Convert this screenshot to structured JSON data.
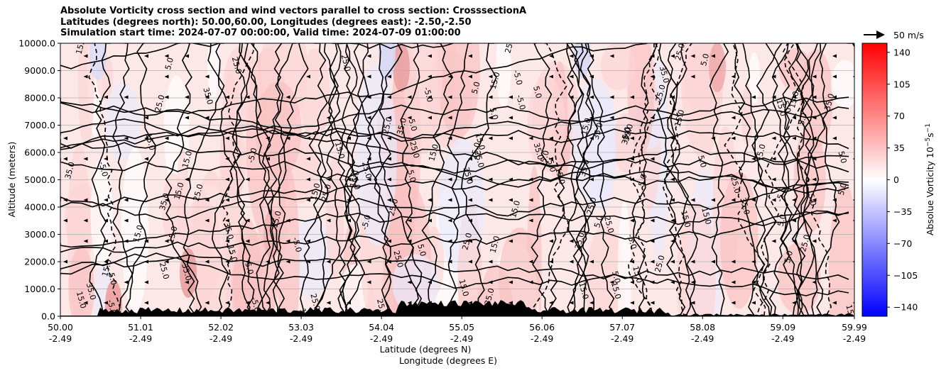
{
  "title_lines": [
    "Absolute Vorticity cross section and wind vectors parallel to cross section: CrosssectionA",
    "Latitudes (degrees north): 50.00,60.00, Longitudes (degrees east): -2.50,-2.50",
    "Simulation start time: 2024-07-07 00:00:00, Valid time: 2024-07-09 01:00:00"
  ],
  "chart_data": {
    "type": "heatmap",
    "title": "Absolute Vorticity cross section and wind vectors parallel to cross section: CrosssectionA",
    "ylabel": "Altitude (meters)",
    "xlabel_lines": [
      "Latitude (degrees N)",
      "Longitude (degrees E)"
    ],
    "ylim": [
      0,
      10000
    ],
    "xlim": [
      50.0,
      59.99
    ],
    "y_ticks": [
      0,
      1000,
      2000,
      3000,
      4000,
      5000,
      6000,
      7000,
      8000,
      9000,
      10000
    ],
    "y_tick_labels": [
      "0.0",
      "1000.0",
      "2000.0",
      "3000.0",
      "4000.0",
      "5000.0",
      "6000.0",
      "7000.0",
      "8000.0",
      "9000.0",
      "10000.0"
    ],
    "x_ticks": [
      50.0,
      51.01,
      52.02,
      53.03,
      54.04,
      55.05,
      56.06,
      57.07,
      58.08,
      59.09,
      59.99
    ],
    "x_tick_labels": [
      [
        "50.00",
        "-2.49"
      ],
      [
        "51.01",
        "-2.49"
      ],
      [
        "52.02",
        "-2.49"
      ],
      [
        "53.03",
        "-2.49"
      ],
      [
        "54.04",
        "-2.49"
      ],
      [
        "55.05",
        "-2.49"
      ],
      [
        "56.06",
        "-2.49"
      ],
      [
        "57.07",
        "-2.49"
      ],
      [
        "58.08",
        "-2.49"
      ],
      [
        "59.09",
        "-2.49"
      ],
      [
        "59.99",
        "-2.49"
      ]
    ],
    "grid": "horizontal",
    "colorbar": {
      "label": "Absolue Vorticity 10^-5 s^-1",
      "label_main": "Absolue Vorticity 10",
      "label_exp": "−5",
      "label_unit": "s",
      "label_unit_exp": "−1",
      "range": [
        -150,
        150
      ],
      "ticks": [
        140,
        105,
        70,
        35,
        0,
        -35,
        -70,
        -105,
        -140
      ],
      "colormap": "bwr"
    },
    "contour_levels": [
      -5.0,
      5.0,
      15.0,
      25.0,
      35.0
    ],
    "quiver_key": {
      "label": "50 m/s",
      "speed": 50
    },
    "terrain_color": "#000000"
  }
}
